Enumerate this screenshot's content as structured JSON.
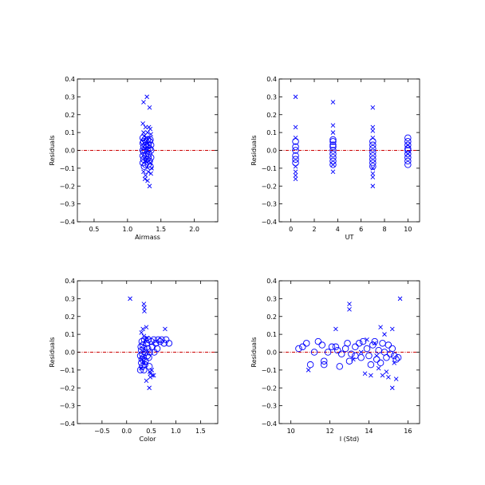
{
  "style": {
    "marker_color": "#0000ff",
    "zero_line_color": "#cc0000",
    "axis_color": "#000000"
  },
  "chart_data": [
    {
      "type": "scatter",
      "xlabel": "Airmass",
      "ylabel": "Residuals",
      "xlim": [
        0.25,
        2.35
      ],
      "ylim": [
        -0.4,
        0.4
      ],
      "xticks": [
        0.5,
        1.0,
        1.5,
        2.0
      ],
      "xtick_labels": [
        "0.5",
        "1.0",
        "1.5",
        "2.0"
      ],
      "yticks": [
        -0.4,
        -0.3,
        -0.2,
        -0.1,
        0.0,
        0.1,
        0.2,
        0.3,
        0.4
      ],
      "ytick_labels": [
        "−0.4",
        "−0.3",
        "−0.2",
        "−0.1",
        "0.0",
        "0.1",
        "0.2",
        "0.3",
        "0.4"
      ],
      "zero_line": true,
      "grid": false,
      "series": [
        {
          "marker": "cross",
          "points": [
            [
              1.24,
              0.27
            ],
            [
              1.29,
              0.3
            ],
            [
              1.33,
              0.24
            ],
            [
              1.23,
              0.15
            ],
            [
              1.27,
              0.13
            ],
            [
              1.32,
              0.13
            ],
            [
              1.34,
              0.12
            ],
            [
              1.24,
              0.1
            ],
            [
              1.3,
              0.1
            ],
            [
              1.35,
              0.09
            ],
            [
              1.25,
              0.08
            ],
            [
              1.33,
              0.07
            ],
            [
              1.28,
              -0.06
            ],
            [
              1.34,
              -0.07
            ],
            [
              1.24,
              -0.12
            ],
            [
              1.31,
              -0.12
            ],
            [
              1.27,
              -0.14
            ],
            [
              1.35,
              -0.13
            ],
            [
              1.3,
              -0.17
            ],
            [
              1.33,
              -0.2
            ],
            [
              1.26,
              -0.16
            ],
            [
              1.36,
              -0.1
            ]
          ]
        },
        {
          "marker": "circle",
          "points": [
            [
              1.23,
              0.07
            ],
            [
              1.26,
              0.06
            ],
            [
              1.3,
              0.06
            ],
            [
              1.34,
              0.06
            ],
            [
              1.24,
              0.05
            ],
            [
              1.28,
              0.05
            ],
            [
              1.33,
              0.05
            ],
            [
              1.23,
              0.04
            ],
            [
              1.27,
              0.03
            ],
            [
              1.31,
              0.03
            ],
            [
              1.35,
              0.03
            ],
            [
              1.24,
              0.02
            ],
            [
              1.29,
              0.02
            ],
            [
              1.33,
              0.01
            ],
            [
              1.23,
              0.0
            ],
            [
              1.26,
              0.0
            ],
            [
              1.3,
              0.0
            ],
            [
              1.35,
              0.0
            ],
            [
              1.24,
              -0.01
            ],
            [
              1.28,
              -0.02
            ],
            [
              1.32,
              -0.02
            ],
            [
              1.23,
              -0.03
            ],
            [
              1.27,
              -0.03
            ],
            [
              1.31,
              -0.04
            ],
            [
              1.35,
              -0.04
            ],
            [
              1.24,
              -0.05
            ],
            [
              1.29,
              -0.05
            ],
            [
              1.33,
              -0.06
            ],
            [
              1.23,
              -0.07
            ],
            [
              1.27,
              -0.08
            ],
            [
              1.31,
              -0.08
            ],
            [
              1.34,
              -0.09
            ],
            [
              1.25,
              -0.09
            ]
          ]
        }
      ]
    },
    {
      "type": "scatter",
      "xlabel": "UT",
      "ylabel": "Residuals",
      "xlim": [
        -1,
        11
      ],
      "ylim": [
        -0.4,
        0.4
      ],
      "xticks": [
        0,
        2,
        4,
        6,
        8,
        10
      ],
      "xtick_labels": [
        "0",
        "2",
        "4",
        "6",
        "8",
        "10"
      ],
      "yticks": [
        -0.4,
        -0.3,
        -0.2,
        -0.1,
        0.0,
        0.1,
        0.2,
        0.3,
        0.4
      ],
      "ytick_labels": [
        "−0.4",
        "−0.3",
        "−0.2",
        "−0.1",
        "0.0",
        "0.1",
        "0.2",
        "0.3",
        "0.4"
      ],
      "zero_line": true,
      "grid": false,
      "series": [
        {
          "marker": "cross",
          "points": [
            [
              0.4,
              0.3
            ],
            [
              0.4,
              0.13
            ],
            [
              0.4,
              0.07
            ],
            [
              0.4,
              -0.09
            ],
            [
              0.4,
              -0.12
            ],
            [
              0.4,
              -0.14
            ],
            [
              0.4,
              -0.16
            ],
            [
              3.6,
              0.27
            ],
            [
              3.6,
              0.14
            ],
            [
              3.6,
              0.1
            ],
            [
              3.6,
              -0.08
            ],
            [
              3.6,
              -0.12
            ],
            [
              7.0,
              0.24
            ],
            [
              7.0,
              0.13
            ],
            [
              7.0,
              0.11
            ],
            [
              7.0,
              0.07
            ],
            [
              7.0,
              -0.1
            ],
            [
              7.0,
              -0.13
            ],
            [
              7.0,
              -0.15
            ],
            [
              7.0,
              -0.2
            ],
            [
              10.0,
              0.03
            ],
            [
              10.0,
              -0.02
            ]
          ]
        },
        {
          "marker": "circle",
          "points": [
            [
              0.4,
              0.05
            ],
            [
              0.4,
              0.02
            ],
            [
              0.4,
              0.0
            ],
            [
              0.4,
              -0.03
            ],
            [
              0.4,
              -0.05
            ],
            [
              0.4,
              -0.07
            ],
            [
              3.6,
              0.06
            ],
            [
              3.6,
              0.05
            ],
            [
              3.6,
              0.03
            ],
            [
              3.6,
              0.02
            ],
            [
              3.6,
              0.0
            ],
            [
              3.6,
              -0.02
            ],
            [
              3.6,
              -0.04
            ],
            [
              3.6,
              -0.06
            ],
            [
              3.6,
              -0.08
            ],
            [
              7.0,
              0.05
            ],
            [
              7.0,
              0.03
            ],
            [
              7.0,
              0.01
            ],
            [
              7.0,
              -0.01
            ],
            [
              7.0,
              -0.03
            ],
            [
              7.0,
              -0.05
            ],
            [
              7.0,
              -0.07
            ],
            [
              7.0,
              -0.09
            ],
            [
              10.0,
              0.07
            ],
            [
              10.0,
              0.05
            ],
            [
              10.0,
              0.03
            ],
            [
              10.0,
              0.01
            ],
            [
              10.0,
              0.0
            ],
            [
              10.0,
              -0.02
            ],
            [
              10.0,
              -0.04
            ],
            [
              10.0,
              -0.06
            ],
            [
              10.0,
              -0.08
            ]
          ]
        }
      ]
    },
    {
      "type": "scatter",
      "xlabel": "Color",
      "ylabel": "Residuals",
      "xlim": [
        -1.0,
        1.85
      ],
      "ylim": [
        -0.4,
        0.4
      ],
      "xticks": [
        -0.5,
        0.0,
        0.5,
        1.0,
        1.5
      ],
      "xtick_labels": [
        "−0.5",
        "0.0",
        "0.5",
        "1.0",
        "1.5"
      ],
      "yticks": [
        -0.4,
        -0.3,
        -0.2,
        -0.1,
        0.0,
        0.1,
        0.2,
        0.3,
        0.4
      ],
      "ytick_labels": [
        "−0.4",
        "−0.3",
        "−0.2",
        "−0.1",
        "0.0",
        "0.1",
        "0.2",
        "0.3",
        "0.4"
      ],
      "zero_line": true,
      "grid": false,
      "series": [
        {
          "marker": "cross",
          "points": [
            [
              0.07,
              0.3
            ],
            [
              0.35,
              0.27
            ],
            [
              0.36,
              0.25
            ],
            [
              0.36,
              0.23
            ],
            [
              0.33,
              0.13
            ],
            [
              0.4,
              0.14
            ],
            [
              0.78,
              0.13
            ],
            [
              0.3,
              0.11
            ],
            [
              0.35,
              0.09
            ],
            [
              0.42,
              0.08
            ],
            [
              0.38,
              0.07
            ],
            [
              0.32,
              -0.04
            ],
            [
              0.36,
              -0.06
            ],
            [
              0.47,
              -0.11
            ],
            [
              0.48,
              -0.12
            ],
            [
              0.52,
              -0.13
            ],
            [
              0.55,
              -0.13
            ],
            [
              0.48,
              -0.14
            ],
            [
              0.4,
              -0.16
            ],
            [
              0.46,
              -0.2
            ],
            [
              0.51,
              -0.1
            ],
            [
              0.29,
              -0.09
            ]
          ]
        },
        {
          "marker": "circle",
          "points": [
            [
              0.31,
              0.06
            ],
            [
              0.36,
              0.07
            ],
            [
              0.44,
              0.07
            ],
            [
              0.55,
              0.07
            ],
            [
              0.64,
              0.07
            ],
            [
              0.71,
              0.07
            ],
            [
              0.8,
              0.07
            ],
            [
              0.86,
              0.05
            ],
            [
              0.76,
              0.05
            ],
            [
              0.68,
              0.06
            ],
            [
              0.59,
              0.05
            ],
            [
              0.5,
              0.06
            ],
            [
              0.41,
              0.05
            ],
            [
              0.33,
              0.04
            ],
            [
              0.29,
              0.03
            ],
            [
              0.35,
              0.02
            ],
            [
              0.43,
              0.02
            ],
            [
              0.52,
              0.03
            ],
            [
              0.62,
              0.02
            ],
            [
              0.3,
              0.01
            ],
            [
              0.38,
              0.0
            ],
            [
              0.47,
              0.0
            ],
            [
              0.56,
              0.0
            ],
            [
              0.32,
              -0.01
            ],
            [
              0.42,
              -0.02
            ],
            [
              0.28,
              -0.02
            ],
            [
              0.34,
              -0.03
            ],
            [
              0.45,
              -0.03
            ],
            [
              0.31,
              -0.04
            ],
            [
              0.38,
              -0.05
            ],
            [
              0.3,
              -0.06
            ],
            [
              0.37,
              -0.07
            ],
            [
              0.46,
              -0.08
            ],
            [
              0.32,
              -0.08
            ],
            [
              0.28,
              -0.1
            ],
            [
              0.35,
              -0.1
            ]
          ]
        }
      ]
    },
    {
      "type": "scatter",
      "xlabel": "I (Std)",
      "ylabel": "Residuals",
      "xlim": [
        9.4,
        16.6
      ],
      "ylim": [
        -0.4,
        0.4
      ],
      "xticks": [
        10,
        12,
        14,
        16
      ],
      "xtick_labels": [
        "10",
        "12",
        "14",
        "16"
      ],
      "yticks": [
        -0.4,
        -0.3,
        -0.2,
        -0.1,
        0.0,
        0.1,
        0.2,
        0.3,
        0.4
      ],
      "ytick_labels": [
        "−0.4",
        "−0.3",
        "−0.2",
        "−0.1",
        "0.0",
        "0.1",
        "0.2",
        "0.3",
        "0.4"
      ],
      "zero_line": true,
      "grid": false,
      "series": [
        {
          "marker": "cross",
          "points": [
            [
              13.0,
              0.27
            ],
            [
              13.0,
              0.24
            ],
            [
              15.6,
              0.3
            ],
            [
              12.3,
              0.13
            ],
            [
              14.6,
              0.14
            ],
            [
              15.2,
              0.13
            ],
            [
              14.8,
              0.1
            ],
            [
              13.9,
              0.07
            ],
            [
              14.3,
              0.05
            ],
            [
              10.9,
              -0.1
            ],
            [
              13.8,
              -0.12
            ],
            [
              14.1,
              -0.13
            ],
            [
              14.5,
              -0.09
            ],
            [
              14.7,
              -0.13
            ],
            [
              15.0,
              -0.14
            ],
            [
              15.2,
              -0.2
            ],
            [
              15.4,
              -0.15
            ],
            [
              14.9,
              -0.11
            ],
            [
              15.3,
              -0.06
            ],
            [
              13.2,
              -0.04
            ],
            [
              14.4,
              -0.02
            ],
            [
              13.6,
              0.0
            ]
          ]
        },
        {
          "marker": "circle",
          "points": [
            [
              10.4,
              0.02
            ],
            [
              10.6,
              0.03
            ],
            [
              10.8,
              0.05
            ],
            [
              11.0,
              -0.07
            ],
            [
              11.2,
              0.0
            ],
            [
              11.4,
              0.06
            ],
            [
              11.6,
              0.04
            ],
            [
              11.7,
              -0.05
            ],
            [
              11.7,
              -0.07
            ],
            [
              11.9,
              0.0
            ],
            [
              12.1,
              0.03
            ],
            [
              12.3,
              0.03
            ],
            [
              12.4,
              0.01
            ],
            [
              12.5,
              -0.08
            ],
            [
              12.6,
              -0.01
            ],
            [
              12.8,
              0.02
            ],
            [
              12.9,
              0.05
            ],
            [
              13.0,
              -0.05
            ],
            [
              13.1,
              -0.01
            ],
            [
              13.3,
              -0.02
            ],
            [
              13.3,
              0.03
            ],
            [
              13.5,
              0.05
            ],
            [
              13.6,
              -0.03
            ],
            [
              13.7,
              0.06
            ],
            [
              13.9,
              0.02
            ],
            [
              14.0,
              -0.02
            ],
            [
              14.1,
              -0.07
            ],
            [
              14.2,
              0.04
            ],
            [
              14.3,
              0.06
            ],
            [
              14.4,
              -0.04
            ],
            [
              14.5,
              0.01
            ],
            [
              14.6,
              -0.06
            ],
            [
              14.7,
              0.05
            ],
            [
              14.8,
              0.0
            ],
            [
              14.9,
              -0.03
            ],
            [
              15.0,
              0.04
            ],
            [
              15.1,
              -0.01
            ],
            [
              15.2,
              0.02
            ],
            [
              15.3,
              -0.02
            ],
            [
              15.4,
              -0.04
            ],
            [
              15.5,
              -0.03
            ]
          ]
        }
      ]
    }
  ]
}
